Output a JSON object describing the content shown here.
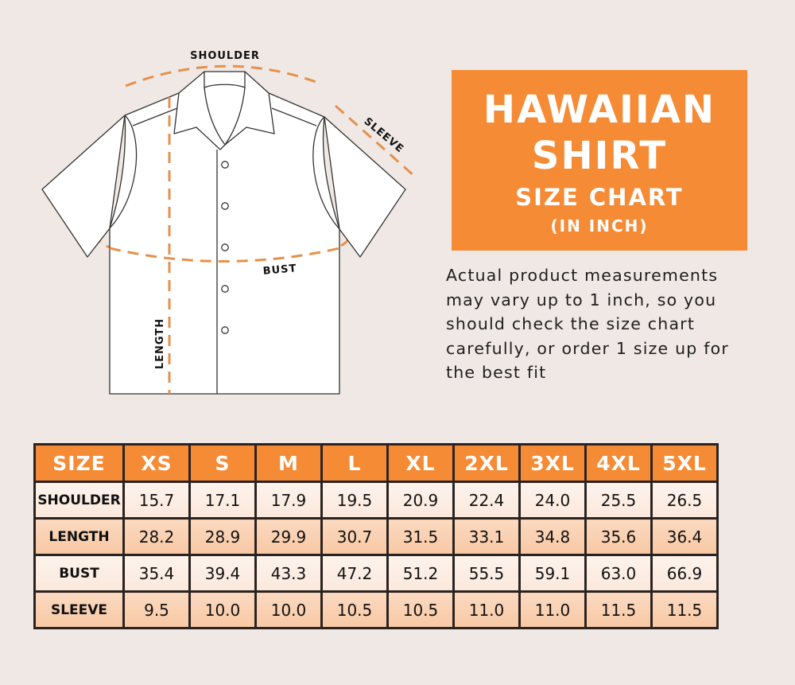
{
  "colors": {
    "accent": "#f68b35",
    "dash": "#e6904c",
    "background": "#efe8e4",
    "row_light": "#fcece2",
    "row_peach": "#f9cba8"
  },
  "diagram": {
    "labels": {
      "shoulder": "SHOULDER",
      "sleeve": "SLEEVE",
      "bust": "BUST",
      "length": "LENGTH"
    }
  },
  "title": {
    "line1": "HAWAIIAN",
    "line2": "SHIRT",
    "line3": "SIZE CHART",
    "line4": "(IN INCH)"
  },
  "note": {
    "lines": [
      "Actual product measurements",
      "may vary up to 1 inch, so you",
      "should check the size chart",
      "carefully, or order 1 size up for",
      "the best fit"
    ]
  },
  "table": {
    "headers": [
      "SIZE",
      "XS",
      "S",
      "M",
      "L",
      "XL",
      "2XL",
      "3XL",
      "4XL",
      "5XL"
    ],
    "rows": [
      {
        "label": "SHOULDER",
        "values": [
          "15.7",
          "17.1",
          "17.9",
          "19.5",
          "20.9",
          "22.4",
          "24.0",
          "25.5",
          "26.5"
        ]
      },
      {
        "label": "LENGTH",
        "values": [
          "28.2",
          "28.9",
          "29.9",
          "30.7",
          "31.5",
          "33.1",
          "34.8",
          "35.6",
          "36.4"
        ]
      },
      {
        "label": "BUST",
        "values": [
          "35.4",
          "39.4",
          "43.3",
          "47.2",
          "51.2",
          "55.5",
          "59.1",
          "63.0",
          "66.9"
        ]
      },
      {
        "label": "SLEEVE",
        "values": [
          "9.5",
          "10.0",
          "10.0",
          "10.5",
          "10.5",
          "11.0",
          "11.0",
          "11.5",
          "11.5"
        ]
      }
    ]
  }
}
